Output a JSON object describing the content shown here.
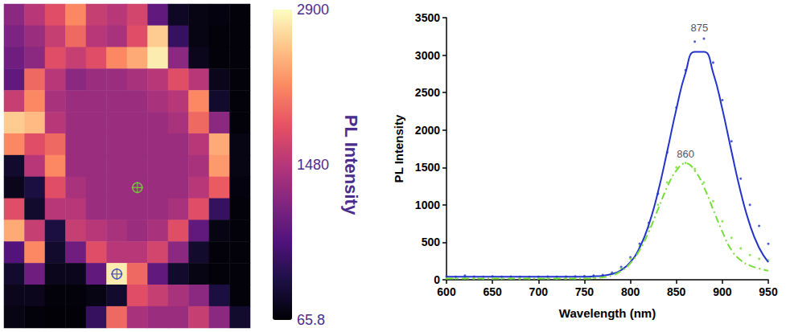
{
  "chart_data": [
    {
      "type": "heatmap",
      "tick_labels": false,
      "cells": [
        [
          1200,
          1500,
          1800,
          2200,
          1600,
          1500,
          1700,
          900,
          250,
          150,
          120,
          100
        ],
        [
          1100,
          1300,
          1600,
          2000,
          1500,
          1400,
          1800,
          2600,
          600,
          150,
          100,
          100
        ],
        [
          1000,
          1200,
          1800,
          1600,
          1800,
          2200,
          2400,
          2800,
          1200,
          200,
          100,
          100
        ],
        [
          900,
          2000,
          1500,
          1200,
          1300,
          1300,
          1400,
          1500,
          1800,
          1500,
          200,
          100
        ],
        [
          1600,
          2200,
          1400,
          1300,
          1300,
          1300,
          1300,
          1400,
          1500,
          2200,
          300,
          100
        ],
        [
          2600,
          2500,
          1500,
          1300,
          1300,
          1300,
          1300,
          1300,
          1400,
          2000,
          1200,
          100
        ],
        [
          2200,
          1800,
          2000,
          1300,
          1300,
          1300,
          1300,
          1300,
          1300,
          1500,
          2400,
          150
        ],
        [
          300,
          1500,
          2200,
          1300,
          1300,
          1300,
          1300,
          1300,
          1300,
          1400,
          2300,
          150
        ],
        [
          200,
          400,
          1800,
          1400,
          1300,
          1300,
          1300,
          1300,
          1300,
          1500,
          1900,
          120
        ],
        [
          1800,
          300,
          1500,
          1500,
          1300,
          1300,
          1300,
          1300,
          1400,
          1800,
          600,
          100
        ],
        [
          2400,
          1600,
          400,
          1600,
          1500,
          1400,
          1300,
          1400,
          1800,
          900,
          150,
          100
        ],
        [
          800,
          2200,
          300,
          1000,
          1800,
          1500,
          1500,
          1700,
          1200,
          300,
          100,
          100
        ],
        [
          300,
          1000,
          200,
          200,
          900,
          2800,
          2000,
          900,
          300,
          150,
          100,
          100
        ],
        [
          200,
          200,
          100,
          100,
          150,
          300,
          1800,
          1600,
          1400,
          1200,
          400,
          100
        ],
        [
          150,
          100,
          80,
          90,
          600,
          2000,
          1400,
          1300,
          1300,
          1600,
          1200,
          300
        ]
      ],
      "colorbar": {
        "range": [
          65.8,
          2900
        ],
        "ticks": [
          65.8,
          1480,
          2900
        ],
        "label": "PL Intensity"
      },
      "points": [
        {
          "x": 6,
          "y": 8,
          "color": "#77dd3a",
          "marker": "crosshair"
        },
        {
          "x": 5,
          "y": 12,
          "color": "#2233cc",
          "marker": "crosshair"
        }
      ]
    },
    {
      "type": "line",
      "xlabel": "Wavelength (nm)",
      "ylabel": "PL Intensity",
      "xlim": [
        600,
        950
      ],
      "xticks": [
        600,
        650,
        700,
        750,
        800,
        850,
        900,
        950
      ],
      "ylim": [
        0,
        3500
      ],
      "yticks": [
        0,
        500,
        1000,
        1500,
        2000,
        2500,
        3000,
        3500
      ],
      "grid": false,
      "x": [
        600,
        610,
        620,
        630,
        640,
        650,
        660,
        670,
        680,
        690,
        700,
        710,
        720,
        730,
        740,
        750,
        760,
        770,
        780,
        790,
        800,
        810,
        820,
        830,
        840,
        850,
        860,
        870,
        880,
        890,
        900,
        910,
        920,
        930,
        940,
        950
      ],
      "series": [
        {
          "type": "scatter",
          "color": "#2233cc",
          "marker": "dot",
          "values": [
            45,
            40,
            55,
            42,
            40,
            45,
            40,
            42,
            40,
            38,
            40,
            42,
            40,
            42,
            45,
            48,
            55,
            65,
            95,
            170,
            300,
            480,
            760,
            1150,
            1700,
            2300,
            2800,
            3180,
            3220,
            2900,
            2400,
            1850,
            1350,
            1000,
            720,
            480
          ]
        },
        {
          "type": "line",
          "color": "#2233cc",
          "line_style": "solid",
          "values": [
            40,
            40,
            40,
            40,
            40,
            40,
            40,
            40,
            40,
            40,
            40,
            40,
            40,
            40,
            40,
            40,
            45,
            54,
            77,
            129,
            235,
            427,
            734,
            1171,
            1712,
            2280,
            2764,
            3043,
            3043,
            2764,
            2280,
            1712,
            1171,
            734,
            427,
            235
          ]
        },
        {
          "type": "scatter",
          "color": "#77dd3a",
          "marker": "dot",
          "values": [
            15,
            18,
            20,
            15,
            15,
            14,
            15,
            15,
            14,
            15,
            15,
            16,
            15,
            16,
            18,
            20,
            28,
            45,
            80,
            150,
            280,
            450,
            700,
            1000,
            1300,
            1500,
            1560,
            1480,
            1300,
            1050,
            780,
            560,
            420,
            330,
            280,
            260
          ]
        },
        {
          "type": "line",
          "color": "#77dd3a",
          "line_style": "dashdot",
          "values": [
            15,
            15,
            15,
            15,
            15,
            15,
            15,
            15,
            15,
            15,
            15,
            15,
            15,
            15,
            15,
            16,
            21,
            32,
            58,
            116,
            221,
            395,
            642,
            940,
            1236,
            1458,
            1555,
            1458,
            1236,
            940,
            642,
            395,
            260,
            190,
            150,
            120
          ]
        }
      ],
      "annotations": [
        {
          "text": "875",
          "x": 875,
          "y": 3370
        },
        {
          "text": "860",
          "x": 860,
          "y": 1680
        }
      ]
    }
  ]
}
